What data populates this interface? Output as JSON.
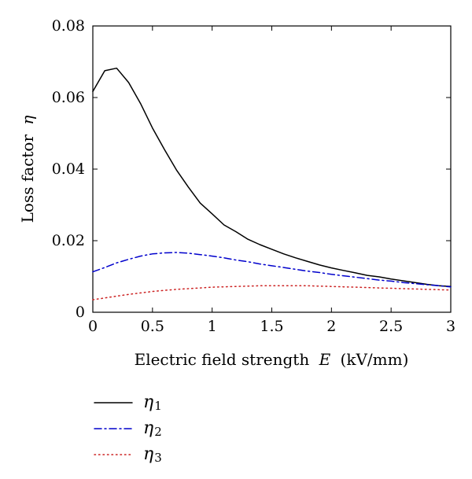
{
  "chart_data": {
    "type": "line",
    "xlabel": "Electric field strength",
    "xlabel_var": "E",
    "xlabel_unit": "(kV/mm)",
    "ylabel": "Loss factor",
    "ylabel_var": "η",
    "xlim": [
      0,
      3
    ],
    "ylim": [
      0,
      0.08
    ],
    "x_ticks": [
      0,
      0.5,
      1,
      1.5,
      2,
      2.5,
      3
    ],
    "x_tick_labels": [
      "0",
      "0.5",
      "1",
      "1.5",
      "2",
      "2.5",
      "3"
    ],
    "y_ticks": [
      0,
      0.02,
      0.04,
      0.06,
      0.08
    ],
    "y_tick_labels": [
      "0",
      "0.02",
      "0.04",
      "0.06",
      "0.08"
    ],
    "grid": false,
    "legend_position": "below-left",
    "series": [
      {
        "name": "η",
        "name_sub": "1",
        "color": "#000000",
        "dash": "solid",
        "x": [
          0,
          0.1,
          0.2,
          0.3,
          0.4,
          0.5,
          0.6,
          0.7,
          0.8,
          0.9,
          1.0,
          1.1,
          1.2,
          1.3,
          1.4,
          1.5,
          1.6,
          1.7,
          1.8,
          1.9,
          2.0,
          2.1,
          2.2,
          2.3,
          2.4,
          2.5,
          2.6,
          2.7,
          2.8,
          2.9,
          3.0
        ],
        "y": [
          0.0617,
          0.0675,
          0.0682,
          0.0642,
          0.0583,
          0.0515,
          0.0455,
          0.0398,
          0.035,
          0.0305,
          0.0275,
          0.0244,
          0.0225,
          0.0204,
          0.0189,
          0.0176,
          0.0163,
          0.0152,
          0.0142,
          0.0132,
          0.0124,
          0.0117,
          0.011,
          0.0103,
          0.0099,
          0.0093,
          0.0088,
          0.0083,
          0.0078,
          0.0074,
          0.0072
        ]
      },
      {
        "name": "η",
        "name_sub": "2",
        "color": "#0000cc",
        "dash": "dashdot",
        "x": [
          0,
          0.1,
          0.2,
          0.3,
          0.4,
          0.5,
          0.6,
          0.7,
          0.8,
          0.9,
          1.0,
          1.1,
          1.2,
          1.3,
          1.4,
          1.5,
          1.6,
          1.7,
          1.8,
          1.9,
          2.0,
          2.1,
          2.2,
          2.3,
          2.4,
          2.5,
          2.6,
          2.7,
          2.8,
          2.9,
          3.0
        ],
        "y": [
          0.0113,
          0.0125,
          0.0138,
          0.0148,
          0.0157,
          0.0163,
          0.0166,
          0.0167,
          0.0165,
          0.0161,
          0.0157,
          0.0152,
          0.0146,
          0.0141,
          0.0135,
          0.013,
          0.0125,
          0.012,
          0.0115,
          0.0111,
          0.0106,
          0.0102,
          0.0098,
          0.0094,
          0.009,
          0.0087,
          0.0083,
          0.008,
          0.0077,
          0.0074,
          0.0071
        ]
      },
      {
        "name": "η",
        "name_sub": "3",
        "color": "#cc2222",
        "dash": "dotted",
        "x": [
          0,
          0.1,
          0.2,
          0.3,
          0.4,
          0.5,
          0.6,
          0.7,
          0.8,
          0.9,
          1.0,
          1.1,
          1.2,
          1.3,
          1.4,
          1.5,
          1.6,
          1.7,
          1.8,
          1.9,
          2.0,
          2.1,
          2.2,
          2.3,
          2.4,
          2.5,
          2.6,
          2.7,
          2.8,
          2.9,
          3.0
        ],
        "y": [
          0.0035,
          0.004,
          0.0045,
          0.005,
          0.0054,
          0.0058,
          0.0061,
          0.0064,
          0.0066,
          0.0068,
          0.007,
          0.0071,
          0.0072,
          0.0073,
          0.0074,
          0.0074,
          0.0074,
          0.0074,
          0.0074,
          0.0073,
          0.0072,
          0.0071,
          0.007,
          0.0069,
          0.0068,
          0.0067,
          0.0066,
          0.0065,
          0.0064,
          0.0063,
          0.0062
        ]
      }
    ]
  }
}
